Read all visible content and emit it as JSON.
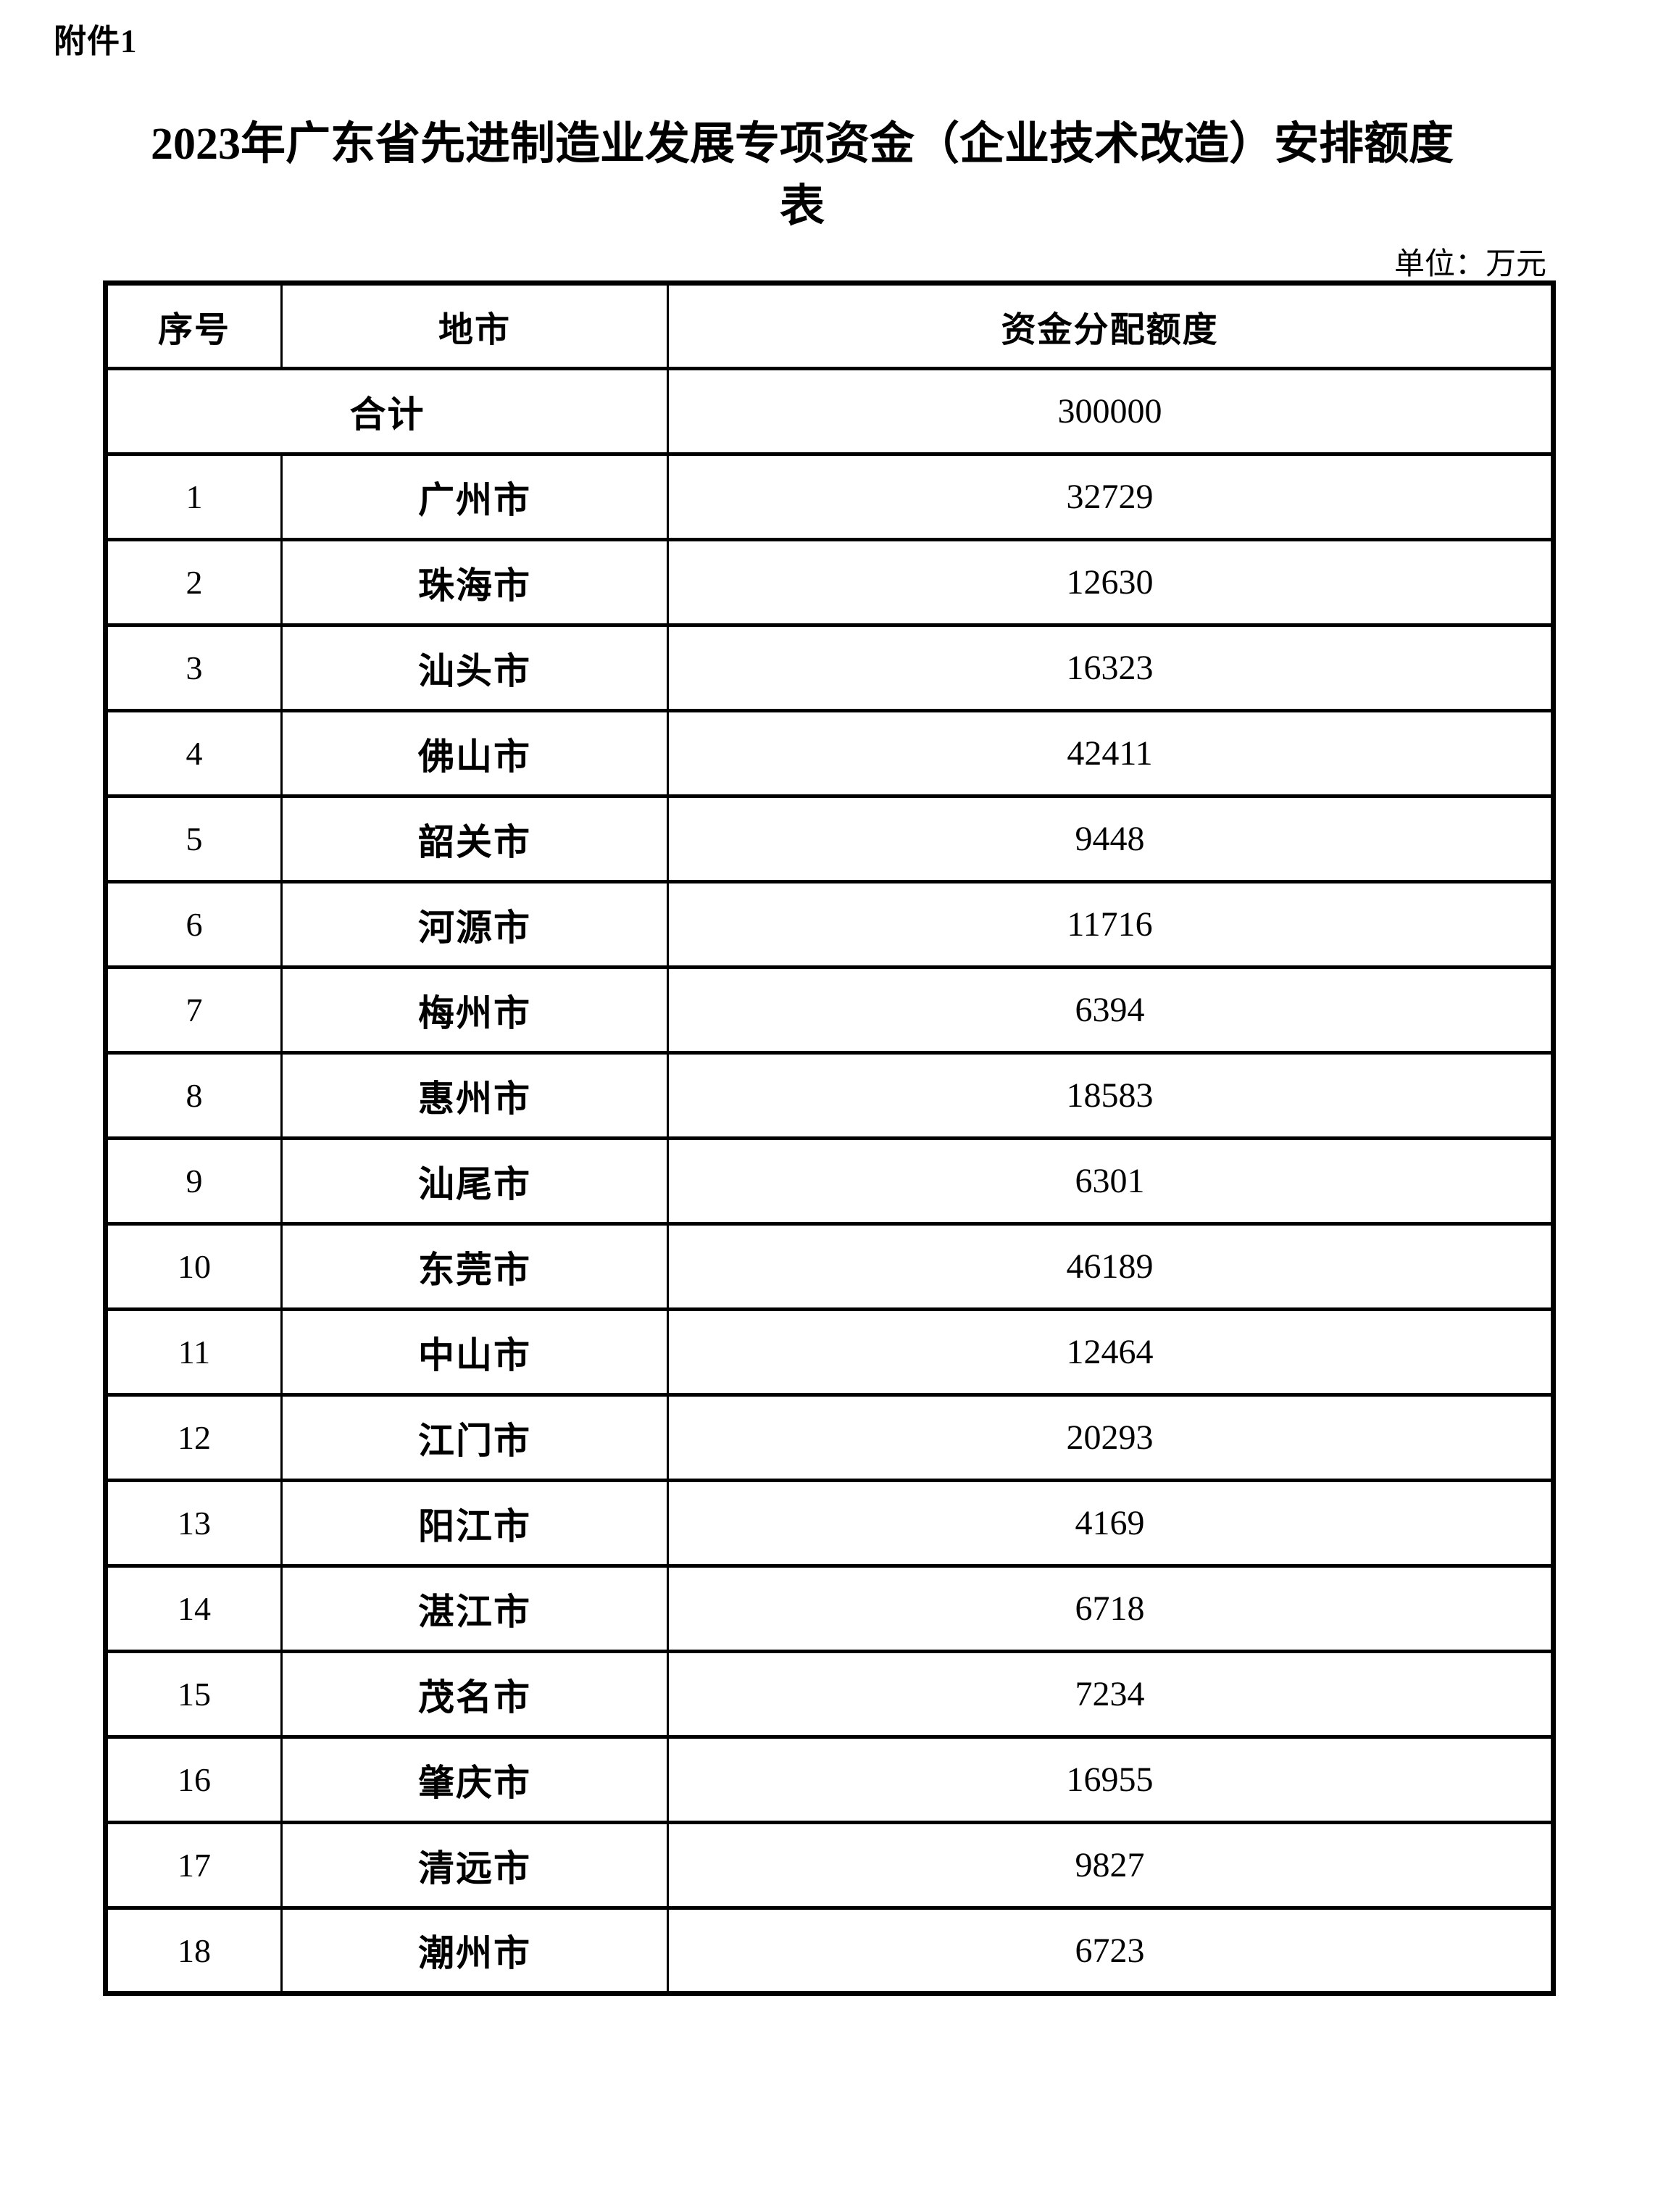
{
  "page": {
    "attachment_label": "附件1",
    "title_line1": "2023年广东省先进制造业发展专项资金（企业技术改造）安排额度",
    "title_line2": "表",
    "unit_note": "单位：万元"
  },
  "table": {
    "headers": {
      "no": "序号",
      "city": "地市",
      "amount": "资金分配额度"
    },
    "total_row": {
      "label": "合计",
      "amount": "300000"
    },
    "rows": [
      {
        "no": "1",
        "city": "广州市",
        "amount": "32729"
      },
      {
        "no": "2",
        "city": "珠海市",
        "amount": "12630"
      },
      {
        "no": "3",
        "city": "汕头市",
        "amount": "16323"
      },
      {
        "no": "4",
        "city": "佛山市",
        "amount": "42411"
      },
      {
        "no": "5",
        "city": "韶关市",
        "amount": "9448"
      },
      {
        "no": "6",
        "city": "河源市",
        "amount": "11716"
      },
      {
        "no": "7",
        "city": "梅州市",
        "amount": "6394"
      },
      {
        "no": "8",
        "city": "惠州市",
        "amount": "18583"
      },
      {
        "no": "9",
        "city": "汕尾市",
        "amount": "6301"
      },
      {
        "no": "10",
        "city": "东莞市",
        "amount": "46189"
      },
      {
        "no": "11",
        "city": "中山市",
        "amount": "12464"
      },
      {
        "no": "12",
        "city": "江门市",
        "amount": "20293"
      },
      {
        "no": "13",
        "city": "阳江市",
        "amount": "4169"
      },
      {
        "no": "14",
        "city": "湛江市",
        "amount": "6718"
      },
      {
        "no": "15",
        "city": "茂名市",
        "amount": "7234"
      },
      {
        "no": "16",
        "city": "肇庆市",
        "amount": "16955"
      },
      {
        "no": "17",
        "city": "清远市",
        "amount": "9827"
      },
      {
        "no": "18",
        "city": "潮州市",
        "amount": "6723"
      }
    ]
  }
}
